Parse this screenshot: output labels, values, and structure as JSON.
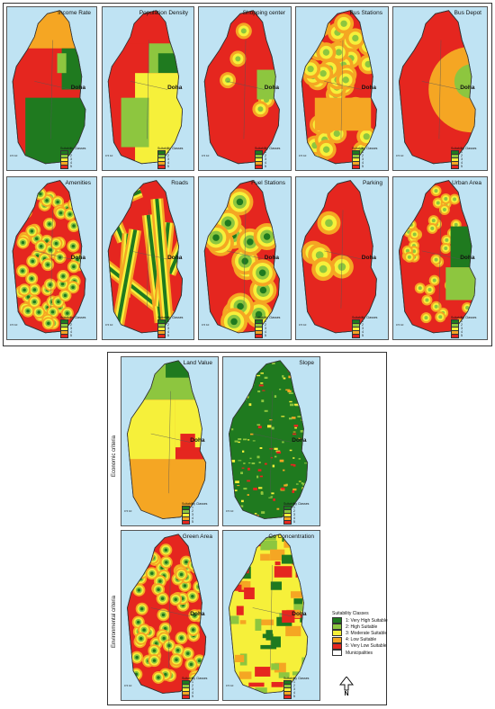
{
  "legend_colors": [
    "#1f7a1f",
    "#8dc63f",
    "#f6f03a",
    "#f5a623",
    "#e5261f"
  ],
  "panels": [
    {
      "title": "Income Rate",
      "style": "income"
    },
    {
      "title": "Population Density",
      "style": "population"
    },
    {
      "title": "Shopping center",
      "style": "buffer_few_east"
    },
    {
      "title": "Bus Stations",
      "style": "bus"
    },
    {
      "title": "Bus Depot",
      "style": "depot"
    },
    {
      "title": "Amenities",
      "style": "dense"
    },
    {
      "title": "Roads",
      "style": "roads"
    },
    {
      "title": "Fuel Stations",
      "style": "fuel"
    },
    {
      "title": "Parking",
      "style": "parking"
    },
    {
      "title": "Urban Area",
      "style": "urban"
    },
    {
      "title": "Land Value",
      "style": "land"
    },
    {
      "title": "Slope",
      "style": "slope"
    },
    {
      "title": "Green Area",
      "style": "green"
    },
    {
      "title": "Co Concentration",
      "style": "co"
    }
  ],
  "city_label": "Doha",
  "mini_legend": {
    "title": "Suitability Classes",
    "classes": [
      "1",
      "2",
      "3",
      "4",
      "5"
    ]
  },
  "scale_label": "0 5 10",
  "side_labels": {
    "economic": "Economic criteria",
    "environmental": "Environmental criteria"
  },
  "legend": {
    "title": "Suitability Classes",
    "items": [
      "1: Very High Suitable",
      "2: High Suitable",
      "3: Moderate Suitable",
      "4: Low Suitable",
      "5: Very Low Suitable"
    ],
    "municipalities": "Municipalities"
  },
  "north_label": "N"
}
